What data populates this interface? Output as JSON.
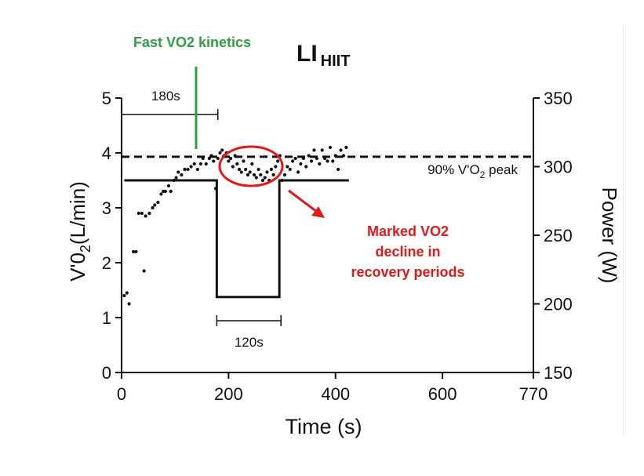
{
  "title": {
    "main": "LI",
    "sub": "HIIT"
  },
  "annotations": {
    "fast_kinetics": "Fast VO2 kinetics",
    "decline_lines": [
      "Marked VO2",
      "decline in",
      "recovery periods"
    ],
    "bracket_top": "180s",
    "bracket_bottom": "120s",
    "threshold_label": "90% V'O",
    "threshold_label_sub": "2",
    "threshold_label_tail": " peak"
  },
  "colors": {
    "green": "#2ea043",
    "red": "#e01919",
    "ink": "#111111"
  },
  "chart_data": {
    "type": "scatter",
    "xlabel": "Time (s)",
    "ylabel_left": "V'0",
    "ylabel_left_sub": "2",
    "ylabel_left_tail": "(L/min)",
    "ylabel_right": "Power (W)",
    "x_ticks": [
      0,
      200,
      400,
      600,
      770
    ],
    "xlim": [
      0,
      770
    ],
    "y_ticks": [
      0,
      1,
      2,
      3,
      4,
      5
    ],
    "ylim": [
      0,
      5
    ],
    "y2_ticks": [
      150,
      200,
      250,
      300,
      350
    ],
    "y2lim": [
      150,
      350
    ],
    "threshold_vo2": 3.93,
    "power_series": {
      "x": [
        5,
        178,
        178,
        295,
        295,
        425
      ],
      "y": [
        290,
        290,
        205,
        205,
        290,
        290
      ]
    },
    "vo2_points": {
      "x": [
        5,
        10,
        14,
        22,
        27,
        32,
        38,
        42,
        45,
        52,
        58,
        62,
        68,
        74,
        78,
        82,
        88,
        92,
        98,
        102,
        106,
        112,
        118,
        124,
        130,
        136,
        142,
        148,
        152,
        158,
        164,
        168,
        172,
        176,
        180,
        184,
        188,
        192,
        196,
        200,
        204,
        208,
        212,
        216,
        220,
        224,
        228,
        232,
        236,
        240,
        244,
        248,
        252,
        256,
        260,
        264,
        268,
        272,
        276,
        280,
        284,
        288,
        292,
        296,
        300,
        305,
        310,
        315,
        320,
        325,
        330,
        335,
        340,
        345,
        350,
        355,
        360,
        365,
        370,
        375,
        380,
        385,
        390,
        395,
        400,
        405,
        410,
        415,
        420
      ],
      "y": [
        1.4,
        1.45,
        1.25,
        2.2,
        2.2,
        2.9,
        2.9,
        1.85,
        2.85,
        2.9,
        3.0,
        3.05,
        3.1,
        3.25,
        3.3,
        3.3,
        3.4,
        3.3,
        3.5,
        3.55,
        3.65,
        3.6,
        3.7,
        3.7,
        3.75,
        3.8,
        3.7,
        3.8,
        3.9,
        3.8,
        3.9,
        3.95,
        3.85,
        3.35,
        3.9,
        4.0,
        4.05,
        3.95,
        4.0,
        3.85,
        3.9,
        3.75,
        3.95,
        3.8,
        3.7,
        3.65,
        3.85,
        3.7,
        3.6,
        3.65,
        3.8,
        3.6,
        3.55,
        3.7,
        3.6,
        3.5,
        3.55,
        3.65,
        3.5,
        3.7,
        3.6,
        3.75,
        3.85,
        3.95,
        3.5,
        3.6,
        3.75,
        3.7,
        3.85,
        3.9,
        3.65,
        3.8,
        3.9,
        3.75,
        3.95,
        3.85,
        4.05,
        3.9,
        3.8,
        4.05,
        3.9,
        3.85,
        4.1,
        3.85,
        3.95,
        3.7,
        4.05,
        3.95,
        4.1
      ]
    }
  }
}
